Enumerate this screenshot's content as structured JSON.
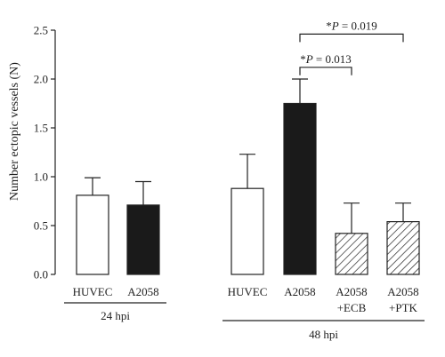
{
  "chart_data": {
    "type": "bar",
    "ylabel": "Number ectopic vessels (N)",
    "ylim": [
      0,
      2.5
    ],
    "yticks": [
      "0.0",
      "0.5",
      "1.0",
      "1.5",
      "2.0",
      "2.5"
    ],
    "bars": [
      {
        "label": "HUVEC",
        "sublabel": "",
        "value": 0.81,
        "error": 0.18,
        "fill": "white",
        "group": 0
      },
      {
        "label": "A2058",
        "sublabel": "",
        "value": 0.71,
        "error": 0.24,
        "fill": "black",
        "group": 0
      },
      {
        "label": "HUVEC",
        "sublabel": "",
        "value": 0.88,
        "error": 0.35,
        "fill": "white",
        "group": 1
      },
      {
        "label": "A2058",
        "sublabel": "",
        "value": 1.75,
        "error": 0.25,
        "fill": "black",
        "group": 1
      },
      {
        "label": "A2058",
        "sublabel": "+ECB",
        "value": 0.42,
        "error": 0.31,
        "fill": "hatch",
        "group": 1
      },
      {
        "label": "A2058",
        "sublabel": "+PTK",
        "value": 0.54,
        "error": 0.19,
        "fill": "hatch",
        "group": 1
      }
    ],
    "groups": [
      {
        "label": "24 hpi"
      },
      {
        "label": "48 hpi"
      }
    ],
    "annotations": [
      {
        "star": "*",
        "p_label": "P",
        "p_text": " = 0.013",
        "from": 3,
        "to": 4,
        "level": 2.12
      },
      {
        "star": "*",
        "p_label": "P",
        "p_text": " = 0.019",
        "from": 3,
        "to": 5,
        "level": 2.46
      }
    ]
  }
}
